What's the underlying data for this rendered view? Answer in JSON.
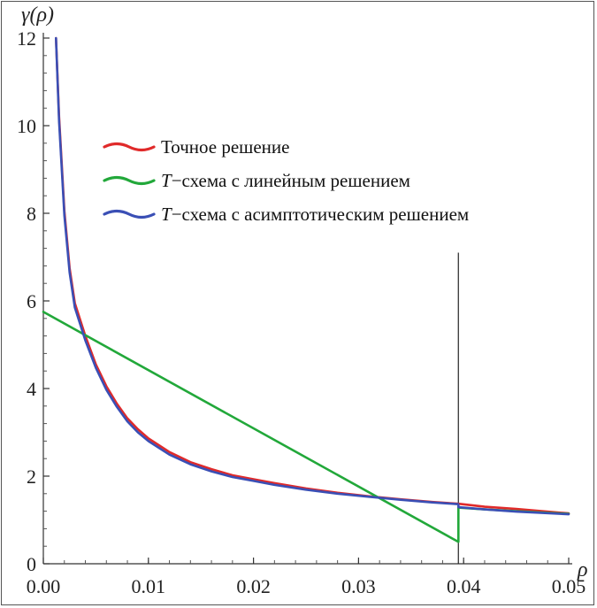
{
  "chart_data": {
    "type": "line",
    "ylabel": "γ(ρ)",
    "xlabel": "ρ",
    "xlim": [
      0,
      0.05
    ],
    "ylim": [
      0,
      12
    ],
    "x_ticks": [
      "0.00",
      "0.01",
      "0.02",
      "0.03",
      "0.04",
      "0.05"
    ],
    "y_ticks": [
      "0",
      "2",
      "4",
      "6",
      "8",
      "10",
      "12"
    ],
    "x_tick_values": [
      0,
      0.01,
      0.02,
      0.03,
      0.04,
      0.05
    ],
    "y_tick_values": [
      0,
      2,
      4,
      6,
      8,
      10,
      12
    ],
    "grid": false,
    "legend_position": "upper-middle",
    "vertical_marker": {
      "x": 0.0395,
      "y_top": 7.1
    },
    "series": [
      {
        "name": "Точное решение",
        "name_italic_prefix": "",
        "name_rest": "Точное решение",
        "color": "#e02a2a",
        "x": [
          0.0012,
          0.0015,
          0.002,
          0.0025,
          0.003,
          0.004,
          0.005,
          0.006,
          0.007,
          0.008,
          0.009,
          0.01,
          0.012,
          0.014,
          0.016,
          0.018,
          0.02,
          0.022,
          0.025,
          0.028,
          0.031,
          0.034,
          0.037,
          0.0395,
          0.042,
          0.045,
          0.05
        ],
        "y": [
          12.0,
          10.2,
          8.05,
          6.75,
          5.95,
          5.2,
          4.55,
          4.05,
          3.65,
          3.32,
          3.07,
          2.86,
          2.55,
          2.32,
          2.16,
          2.02,
          1.93,
          1.84,
          1.72,
          1.62,
          1.54,
          1.47,
          1.41,
          1.37,
          1.3,
          1.25,
          1.15
        ]
      },
      {
        "name": "T−схема с линейным решением",
        "name_italic_prefix": "T",
        "name_rest": "−схема с линейным решением",
        "color": "#22a83a",
        "x": [
          0.0,
          0.0395,
          0.0395,
          0.042,
          0.045,
          0.05
        ],
        "y": [
          5.75,
          0.5,
          1.28,
          1.24,
          1.2,
          1.14
        ]
      },
      {
        "name": "T−схема с асимптотическим решением",
        "name_italic_prefix": "T",
        "name_rest": "−схема с асимптотическим решением",
        "color": "#3a4fb5",
        "x": [
          0.0012,
          0.0015,
          0.002,
          0.0025,
          0.003,
          0.004,
          0.005,
          0.006,
          0.007,
          0.008,
          0.009,
          0.01,
          0.012,
          0.014,
          0.016,
          0.018,
          0.02,
          0.022,
          0.025,
          0.028,
          0.031,
          0.034,
          0.037,
          0.0395,
          0.0395,
          0.042,
          0.045,
          0.05
        ],
        "y": [
          12.0,
          10.1,
          7.95,
          6.65,
          5.85,
          5.1,
          4.47,
          3.97,
          3.58,
          3.25,
          3.0,
          2.8,
          2.49,
          2.27,
          2.11,
          1.98,
          1.89,
          1.8,
          1.69,
          1.6,
          1.53,
          1.46,
          1.4,
          1.36,
          1.29,
          1.24,
          1.19,
          1.13
        ]
      }
    ]
  }
}
